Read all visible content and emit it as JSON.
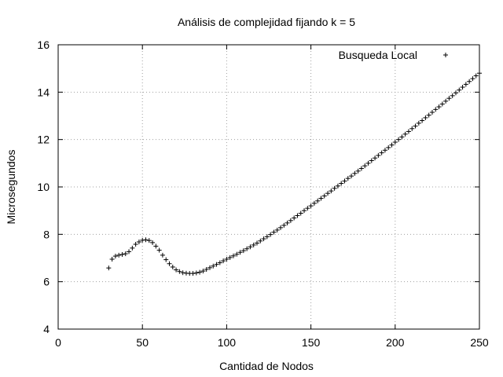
{
  "chart_data": {
    "type": "scatter",
    "title": "Análisis de complejidad fijando k = 5",
    "xlabel": "Cantidad de Nodos",
    "ylabel": "Microsegundos",
    "xlim": [
      0,
      250
    ],
    "ylim": [
      4,
      16
    ],
    "xticks": [
      0,
      50,
      100,
      150,
      200,
      250
    ],
    "yticks": [
      4,
      6,
      8,
      10,
      12,
      14,
      16
    ],
    "grid": true,
    "legend_position": "top-right",
    "series": [
      {
        "name": "Busqueda Local",
        "marker": "plus",
        "color": "#000000",
        "x": [
          30,
          32,
          34,
          36,
          38,
          40,
          42,
          44,
          46,
          48,
          50,
          52,
          54,
          56,
          58,
          60,
          62,
          64,
          66,
          68,
          70,
          72,
          74,
          76,
          78,
          80,
          82,
          84,
          86,
          88,
          90,
          92,
          94,
          96,
          98,
          100,
          102,
          104,
          106,
          108,
          110,
          112,
          114,
          116,
          118,
          120,
          122,
          124,
          126,
          128,
          130,
          132,
          134,
          136,
          138,
          140,
          142,
          144,
          146,
          148,
          150,
          152,
          154,
          156,
          158,
          160,
          162,
          164,
          166,
          168,
          170,
          172,
          174,
          176,
          178,
          180,
          182,
          184,
          186,
          188,
          190,
          192,
          194,
          196,
          198,
          200,
          202,
          204,
          206,
          208,
          210,
          212,
          214,
          216,
          218,
          220,
          222,
          224,
          226,
          228,
          230,
          232,
          234,
          236,
          238,
          240,
          242,
          244,
          246,
          248,
          250
        ],
        "y": [
          6.58,
          6.95,
          7.08,
          7.12,
          7.15,
          7.18,
          7.27,
          7.42,
          7.58,
          7.68,
          7.75,
          7.77,
          7.74,
          7.65,
          7.5,
          7.33,
          7.12,
          6.93,
          6.76,
          6.62,
          6.5,
          6.43,
          6.38,
          6.36,
          6.35,
          6.35,
          6.37,
          6.4,
          6.45,
          6.52,
          6.59,
          6.66,
          6.73,
          6.8,
          6.88,
          6.95,
          7.02,
          7.09,
          7.16,
          7.24,
          7.31,
          7.39,
          7.47,
          7.55,
          7.63,
          7.72,
          7.81,
          7.9,
          7.99,
          8.09,
          8.18,
          8.28,
          8.38,
          8.48,
          8.58,
          8.69,
          8.79,
          8.89,
          9.0,
          9.1,
          9.2,
          9.31,
          9.41,
          9.52,
          9.62,
          9.73,
          9.83,
          9.94,
          10.04,
          10.15,
          10.25,
          10.36,
          10.46,
          10.57,
          10.67,
          10.78,
          10.89,
          11.0,
          11.11,
          11.22,
          11.33,
          11.44,
          11.55,
          11.66,
          11.77,
          11.89,
          12.0,
          12.11,
          12.23,
          12.34,
          12.46,
          12.57,
          12.69,
          12.8,
          12.92,
          13.03,
          13.15,
          13.27,
          13.38,
          13.5,
          13.62,
          13.74,
          13.85,
          13.97,
          14.09,
          14.21,
          14.33,
          14.45,
          14.57,
          14.69,
          14.8
        ]
      }
    ]
  }
}
